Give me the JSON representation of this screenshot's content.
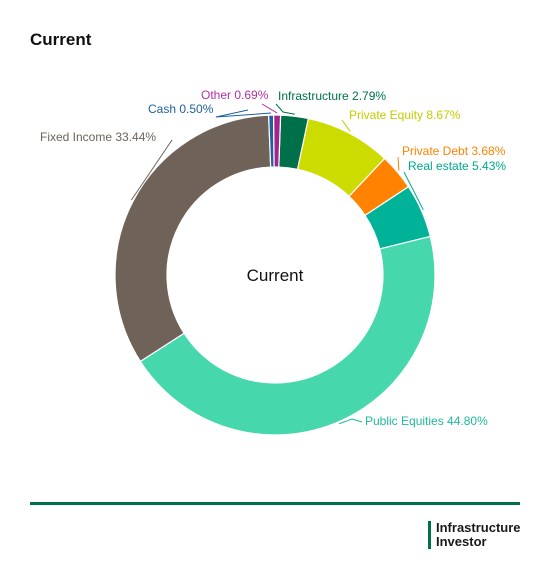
{
  "title": "Current",
  "logo": {
    "line1": "Infrastructure",
    "line2": "Investor"
  },
  "chart_data": {
    "type": "pie",
    "donut": true,
    "center_label": "Current",
    "slices": [
      {
        "label": "Infrastructure 2.79%",
        "value": 2.79,
        "color": "#00704a",
        "label_color": "#00704a"
      },
      {
        "label": "Private Equity 8.67%",
        "value": 8.67,
        "color": "#ccdb00",
        "label_color": "#c4cc00"
      },
      {
        "label": "Private Debt 3.68%",
        "value": 3.68,
        "color": "#ff8200",
        "label_color": "#ff8200"
      },
      {
        "label": "Real estate 5.43%",
        "value": 5.43,
        "color": "#00b398",
        "label_color": "#00a88f"
      },
      {
        "label": "Public Equities 44.80%",
        "value": 44.8,
        "color": "#47d7ac",
        "label_color": "#20b99a"
      },
      {
        "label": "Fixed Income 33.44%",
        "value": 33.44,
        "color": "#6e6259",
        "label_color": "#6e6259"
      },
      {
        "label": "Cash 0.50%",
        "value": 0.5,
        "color": "#1f5fa0",
        "label_color": "#1f5fa0"
      },
      {
        "label": "Other 0.69%",
        "value": 0.69,
        "color": "#a4238e",
        "label_color": "#b030a0"
      }
    ]
  }
}
